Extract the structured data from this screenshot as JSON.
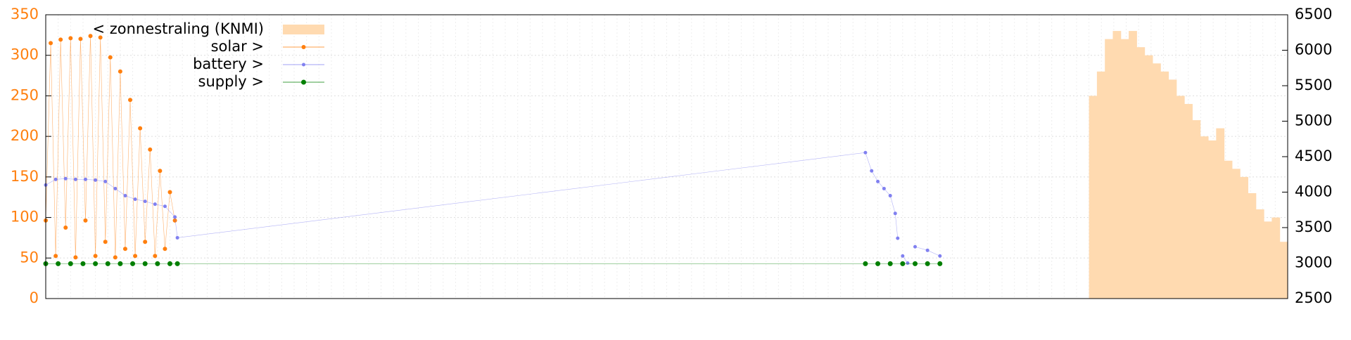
{
  "chart_data": {
    "type": "line",
    "ylim": [
      0,
      350
    ],
    "yticks": [
      0,
      50,
      100,
      150,
      200,
      250,
      300,
      350
    ],
    "ytick_color": "#ff7f0e",
    "y2lim": [
      2500,
      6500
    ],
    "y2ticks": [
      2500,
      3000,
      3500,
      4000,
      4500,
      5000,
      5500,
      6000,
      6500
    ],
    "xlim": [
      0,
      1
    ],
    "grid": true,
    "legend": "top-left",
    "area": {
      "name": "< zonnestraling (KNMI)",
      "color": "#ffdab0",
      "bins": [
        0.84,
        0.8464,
        0.8528,
        0.8592,
        0.8656,
        0.872,
        0.8784,
        0.8848,
        0.8912,
        0.8976,
        0.904,
        0.9104,
        0.9168,
        0.9232,
        0.9296,
        0.936,
        0.9424,
        0.9488,
        0.9552,
        0.9616,
        0.968,
        0.9744,
        0.9808,
        0.9872,
        0.9936,
        1.0
      ],
      "values": [
        250,
        280,
        320,
        330,
        320,
        330,
        310,
        300,
        290,
        280,
        270,
        250,
        240,
        220,
        200,
        195,
        210,
        170,
        160,
        150,
        130,
        110,
        95,
        100,
        70
      ]
    },
    "series": [
      {
        "name": "solar >",
        "color": "#ff7f0e",
        "axis": "y2",
        "marker": 3,
        "x": [
          0,
          0.004,
          0.008,
          0.012,
          0.016,
          0.02,
          0.024,
          0.028,
          0.032,
          0.036,
          0.04,
          0.044,
          0.048,
          0.052,
          0.056,
          0.06,
          0.064,
          0.068,
          0.072,
          0.076,
          0.08,
          0.084,
          0.088,
          0.092,
          0.096,
          0.1,
          0.104
        ],
        "values": [
          3600,
          6100,
          3100,
          6150,
          3500,
          6170,
          3080,
          6160,
          3600,
          6200,
          3100,
          6180,
          3300,
          5900,
          3080,
          5700,
          3200,
          5300,
          3100,
          4900,
          3300,
          4600,
          3100,
          4300,
          3200,
          4000,
          3600
        ]
      },
      {
        "name": "battery >",
        "color": "#8080f0",
        "axis": "y2",
        "marker": 2.5,
        "x": [
          0,
          0.008,
          0.016,
          0.024,
          0.032,
          0.04,
          0.048,
          0.056,
          0.064,
          0.072,
          0.08,
          0.088,
          0.096,
          0.104,
          0.106,
          0.66,
          0.665,
          0.67,
          0.675,
          0.68,
          0.684,
          0.686,
          0.688,
          0.69,
          0.694,
          0.697,
          0.7,
          0.71,
          0.72
        ],
        "values": [
          4100,
          4180,
          4190,
          4180,
          4180,
          4170,
          4150,
          4050,
          3950,
          3900,
          3870,
          3830,
          3800,
          3650,
          3357,
          4557,
          4300,
          4150,
          4050,
          3950,
          3700,
          3350,
          null,
          3100,
          3000,
          null,
          3230,
          3180,
          3100
        ]
      },
      {
        "name": "supply >",
        "color": "#007f00",
        "axis": "y2",
        "marker": 3.5,
        "x": [
          0,
          0.01,
          0.02,
          0.03,
          0.04,
          0.05,
          0.06,
          0.07,
          0.08,
          0.09,
          0.1,
          0.106,
          0.66,
          0.67,
          0.68,
          0.69,
          0.7,
          0.71,
          0.72
        ],
        "values": [
          2991,
          2991,
          2991,
          2991,
          2991,
          2991,
          2991,
          2991,
          2991,
          2991,
          2991,
          2991,
          2991,
          2991,
          2991,
          2991,
          2991,
          2991,
          2991
        ]
      }
    ]
  }
}
